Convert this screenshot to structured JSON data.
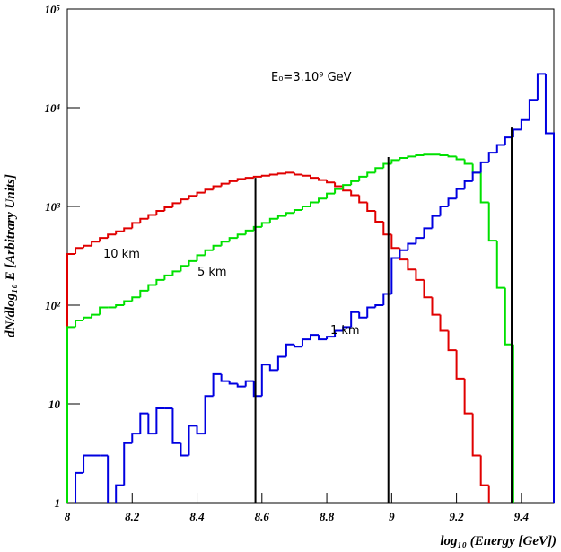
{
  "chart_data": {
    "type": "histogram",
    "xlabel": "log₁₀ (Energy [GeV])",
    "ylabel": "dN/dlog₁₀ E [Arbitrary Units]",
    "annotation": "E₀=3.10⁹ GeV",
    "log_y": true,
    "xlim": [
      8,
      9.5
    ],
    "ylim": [
      1,
      100000
    ],
    "xticks": [
      8,
      8.2,
      8.4,
      8.6,
      8.8,
      9,
      9.2,
      9.4
    ],
    "yticks": [
      1,
      10,
      {
        "value": 100,
        "label": "10²"
      },
      {
        "value": 1000,
        "label": "10³"
      },
      {
        "value": 10000,
        "label": "10⁴"
      },
      {
        "value": 100000,
        "label": "10⁵"
      }
    ],
    "bins": [
      8,
      8.025,
      8.05,
      8.075,
      8.1,
      8.125,
      8.15,
      8.175,
      8.2,
      8.225,
      8.25,
      8.275,
      8.3,
      8.325,
      8.35,
      8.375,
      8.4,
      8.425,
      8.45,
      8.475,
      8.5,
      8.525,
      8.55,
      8.575,
      8.6,
      8.625,
      8.65,
      8.675,
      8.7,
      8.725,
      8.75,
      8.775,
      8.8,
      8.825,
      8.85,
      8.875,
      8.9,
      8.925,
      8.95,
      8.975,
      9,
      9.025,
      9.05,
      9.075,
      9.1,
      9.125,
      9.15,
      9.175,
      9.2,
      9.225,
      9.25,
      9.275,
      9.3,
      9.325,
      9.35,
      9.375,
      9.4,
      9.425,
      9.45,
      9.475,
      9.5
    ],
    "series": [
      {
        "name": "10 km",
        "color": "#e00000",
        "values": [
          330,
          380,
          400,
          440,
          480,
          520,
          560,
          600,
          680,
          750,
          820,
          900,
          980,
          1080,
          1180,
          1280,
          1380,
          1480,
          1600,
          1700,
          1800,
          1900,
          1950,
          2000,
          2050,
          2100,
          2150,
          2200,
          2100,
          2050,
          1950,
          1850,
          1750,
          1600,
          1450,
          1300,
          1100,
          900,
          700,
          520,
          380,
          290,
          230,
          180,
          120,
          80,
          55,
          35,
          18,
          8,
          3,
          1.5,
          null,
          null,
          null,
          null,
          null,
          null,
          null,
          null
        ]
      },
      {
        "name": "5 km",
        "color": "#00e000",
        "values": [
          60,
          70,
          75,
          80,
          95,
          95,
          100,
          110,
          120,
          140,
          160,
          180,
          200,
          220,
          250,
          280,
          320,
          360,
          400,
          440,
          480,
          520,
          570,
          620,
          680,
          750,
          800,
          860,
          920,
          1000,
          1100,
          1200,
          1350,
          1500,
          1650,
          1800,
          2000,
          2200,
          2450,
          2700,
          2950,
          3100,
          3200,
          3300,
          3350,
          3350,
          3300,
          3200,
          3000,
          2700,
          2200,
          1100,
          450,
          150,
          40,
          null,
          null,
          null,
          null,
          null
        ]
      },
      {
        "name": "1 km",
        "color": "#0000e0",
        "values": [
          null,
          2,
          3,
          3,
          3,
          null,
          1.5,
          4,
          5,
          8,
          5,
          9,
          9,
          4,
          3,
          6,
          5,
          12,
          20,
          17,
          16,
          15,
          17,
          12,
          25,
          22,
          30,
          40,
          38,
          45,
          50,
          45,
          48,
          55,
          60,
          85,
          75,
          95,
          100,
          130,
          300,
          360,
          420,
          480,
          600,
          800,
          1000,
          1200,
          1500,
          1800,
          2200,
          2800,
          3500,
          4200,
          5000,
          6000,
          7500,
          12000,
          22000,
          5500
        ]
      }
    ],
    "lines": [
      {
        "x": 8.58,
        "y": 1950
      },
      {
        "x": 8.99,
        "y": 3160
      },
      {
        "x": 9.37,
        "y": 6300
      }
    ]
  }
}
